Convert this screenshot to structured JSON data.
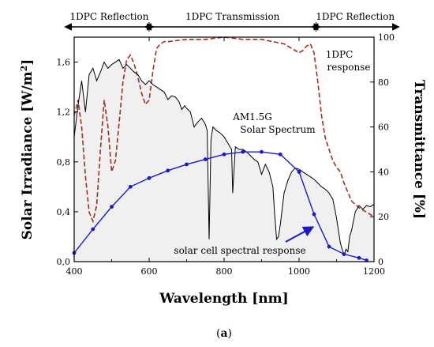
{
  "chart_data": {
    "type": "line",
    "xlabel": "Wavelength [nm]",
    "ylabel_left_main": "Solar Irradiance [W/m",
    "ylabel_left_sup": "2",
    "ylabel_left_end": "]",
    "ylabel_right": "Transmittance [%]",
    "xlim": [
      400,
      1200
    ],
    "ylim_left": [
      0,
      1.8
    ],
    "ylim_right": [
      0,
      100
    ],
    "x_ticks": [
      "400",
      "600",
      "800",
      "1000",
      "1200"
    ],
    "x_tick_values": [
      400,
      600,
      800,
      1000,
      1200
    ],
    "y_left_ticks": [
      "0,0",
      "0,4",
      "0,8",
      "1,2",
      "1,6"
    ],
    "y_left_tick_values": [
      0,
      0.4,
      0.8,
      1.2,
      1.6
    ],
    "y_right_ticks": [
      "0",
      "20",
      "40",
      "60",
      "80",
      "100"
    ],
    "y_right_tick_values": [
      0,
      20,
      40,
      60,
      80,
      100
    ],
    "grid": false,
    "caption": "a",
    "regions": [
      {
        "label": "1DPC Reflection",
        "x_start": 400,
        "x_end": 600
      },
      {
        "label": "1DPC Transmission",
        "x_start": 600,
        "x_end": 1045
      },
      {
        "label": "1DPC Reflection",
        "x_start": 1045,
        "x_end": 1200
      }
    ],
    "annotations": {
      "spectrum_line1": "AM1.5G",
      "spectrum_line2": "Solar Spectrum",
      "dpc_line1": "1DPC",
      "dpc_line2": "response",
      "cell_response": "solar cell spectral response"
    },
    "series": [
      {
        "axis": "left",
        "color": "#000000",
        "style": "solid-filled",
        "fill": "#f0f0f0",
        "x": [
          400,
          410,
          420,
          430,
          440,
          450,
          460,
          470,
          480,
          490,
          500,
          510,
          520,
          530,
          540,
          550,
          560,
          570,
          580,
          590,
          600,
          610,
          620,
          630,
          640,
          650,
          660,
          670,
          680,
          687,
          695,
          700,
          710,
          720,
          730,
          740,
          750,
          755,
          760,
          765,
          770,
          780,
          790,
          800,
          810,
          820,
          823,
          830,
          840,
          850,
          860,
          870,
          880,
          890,
          900,
          910,
          920,
          930,
          935,
          940,
          945,
          950,
          960,
          970,
          980,
          990,
          1000,
          1010,
          1020,
          1030,
          1040,
          1050,
          1060,
          1070,
          1080,
          1090,
          1100,
          1110,
          1120,
          1125,
          1130,
          1135,
          1140,
          1150,
          1160,
          1170,
          1180,
          1190,
          1200
        ],
        "y": [
          1.0,
          1.25,
          1.45,
          1.2,
          1.5,
          1.55,
          1.45,
          1.52,
          1.6,
          1.55,
          1.58,
          1.6,
          1.62,
          1.55,
          1.58,
          1.55,
          1.52,
          1.5,
          1.45,
          1.42,
          1.45,
          1.42,
          1.4,
          1.38,
          1.36,
          1.3,
          1.33,
          1.32,
          1.28,
          1.22,
          1.25,
          1.23,
          1.2,
          1.08,
          1.12,
          1.15,
          1.1,
          1.05,
          0.18,
          0.98,
          1.08,
          1.05,
          1.03,
          1.0,
          0.95,
          0.9,
          0.55,
          0.92,
          0.9,
          0.9,
          0.88,
          0.85,
          0.82,
          0.8,
          0.7,
          0.78,
          0.72,
          0.6,
          0.38,
          0.18,
          0.2,
          0.3,
          0.55,
          0.65,
          0.72,
          0.75,
          0.74,
          0.72,
          0.7,
          0.68,
          0.66,
          0.63,
          0.6,
          0.58,
          0.55,
          0.5,
          0.35,
          0.15,
          0.05,
          0.1,
          0.08,
          0.2,
          0.25,
          0.4,
          0.45,
          0.42,
          0.45,
          0.44,
          0.46
        ]
      },
      {
        "axis": "right",
        "color": "#a03020",
        "style": "dashed",
        "x": [
          400,
          410,
          420,
          430,
          440,
          450,
          460,
          470,
          480,
          490,
          500,
          510,
          520,
          530,
          540,
          550,
          560,
          570,
          580,
          590,
          600,
          610,
          620,
          630,
          640,
          650,
          700,
          750,
          800,
          850,
          900,
          930,
          960,
          990,
          1000,
          1010,
          1020,
          1030,
          1040,
          1050,
          1060,
          1070,
          1080,
          1090,
          1100,
          1110,
          1120,
          1140,
          1160,
          1180,
          1200
        ],
        "y": [
          65,
          72,
          60,
          38,
          22,
          18,
          25,
          50,
          72,
          60,
          40,
          45,
          62,
          80,
          90,
          92,
          88,
          82,
          75,
          70,
          72,
          85,
          95,
          97,
          98,
          98,
          99,
          99,
          100,
          99,
          99,
          98,
          97,
          94,
          93,
          94,
          96,
          97,
          93,
          80,
          65,
          55,
          50,
          45,
          42,
          40,
          35,
          27,
          24,
          22,
          20
        ]
      },
      {
        "axis": "left",
        "color": "#1a1acc",
        "style": "solid-markers",
        "x": [
          400,
          450,
          500,
          550,
          600,
          650,
          700,
          750,
          800,
          850,
          900,
          950,
          1000,
          1040,
          1080,
          1120,
          1160,
          1180
        ],
        "y": [
          0.07,
          0.26,
          0.44,
          0.6,
          0.67,
          0.73,
          0.78,
          0.82,
          0.86,
          0.88,
          0.88,
          0.86,
          0.72,
          0.38,
          0.12,
          0.06,
          0.03,
          0.01
        ]
      }
    ]
  }
}
